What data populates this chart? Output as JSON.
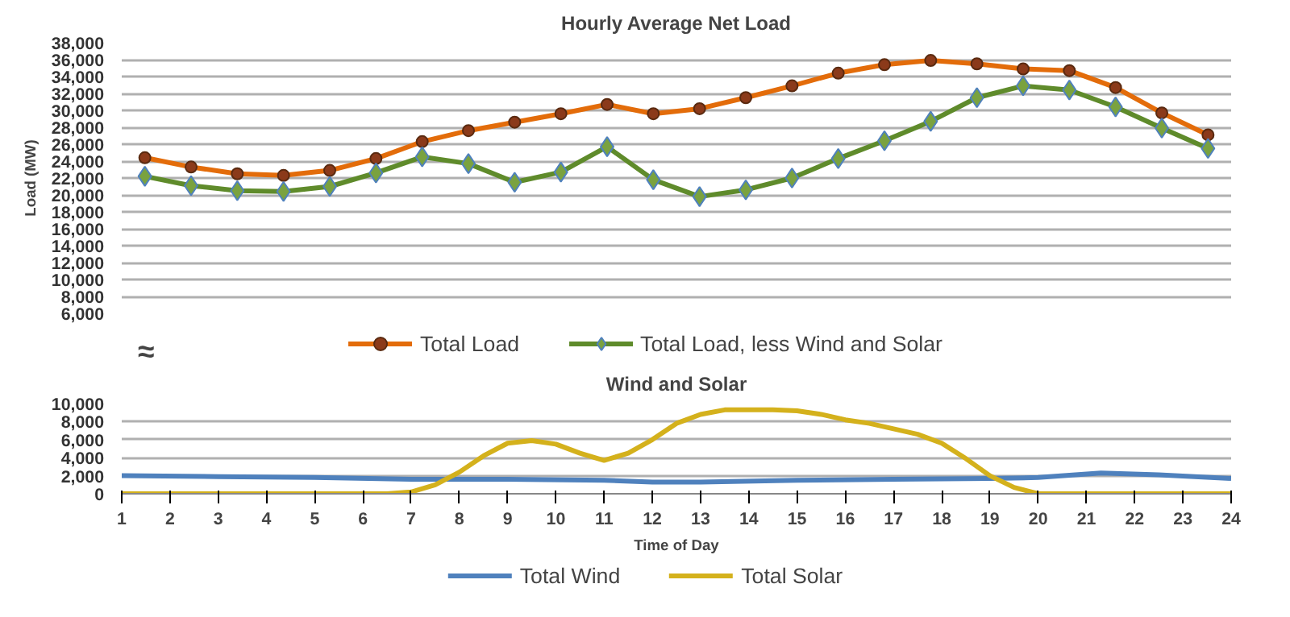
{
  "chart_data": [
    {
      "type": "line",
      "title": "Hourly Average Net Load",
      "ylabel": "Load (MW)",
      "categories": [
        null,
        null,
        null,
        null,
        null,
        null,
        null,
        null,
        null,
        null,
        null,
        null,
        null,
        null,
        null,
        null,
        null,
        null,
        null,
        null,
        null,
        null,
        null,
        null
      ],
      "series": [
        {
          "name": "Total Load",
          "color": "#e36c0a",
          "marker": "circle",
          "values": [
            24400,
            23300,
            22500,
            22300,
            22900,
            24300,
            26300,
            27600,
            28600,
            29600,
            30700,
            29600,
            30200,
            31500,
            32900,
            34400,
            35400,
            35900,
            35500,
            34900,
            34700,
            32700,
            29700,
            27100
          ]
        },
        {
          "name": "Total Load, less Wind and Solar",
          "color": "#5f8b2b",
          "marker": "diamond",
          "values": [
            22200,
            21100,
            20500,
            20400,
            21000,
            22600,
            24500,
            23700,
            21500,
            22700,
            25700,
            21800,
            19800,
            20600,
            22000,
            24300,
            26400,
            28700,
            31500,
            32900,
            32400,
            30400,
            27900,
            25500
          ]
        }
      ],
      "ylim": [
        6000,
        38000
      ],
      "yticks": [
        {
          "value": 6000,
          "label": "6,000"
        },
        {
          "value": 8000,
          "label": "8,000"
        },
        {
          "value": 10000,
          "label": "10,000"
        },
        {
          "value": 12000,
          "label": "12,000"
        },
        {
          "value": 14000,
          "label": "14,000"
        },
        {
          "value": 16000,
          "label": "16,000"
        },
        {
          "value": 18000,
          "label": "18,000"
        },
        {
          "value": 20000,
          "label": "20,000"
        },
        {
          "value": 22000,
          "label": "22,000"
        },
        {
          "value": 24000,
          "label": "24,000"
        },
        {
          "value": 26000,
          "label": "26,000"
        },
        {
          "value": 28000,
          "label": "28,000"
        },
        {
          "value": 30000,
          "label": "30,000"
        },
        {
          "value": 32000,
          "label": "32,000"
        },
        {
          "value": 34000,
          "label": "34,000"
        },
        {
          "value": 36000,
          "label": "36,000"
        },
        {
          "value": 38000,
          "label": "38,000"
        }
      ],
      "grid": "y",
      "legend": "bottom",
      "tick_labels": "y",
      "annotations": [
        "≈"
      ]
    },
    {
      "type": "line",
      "title": "Wind and Solar",
      "xlabel": "Time of Day",
      "series": [
        {
          "name": "Total Wind",
          "color": "#4f81bd",
          "x": [
            1,
            3,
            5,
            7,
            9,
            11,
            12,
            13,
            15,
            17,
            19,
            20,
            21.3,
            22.5,
            24
          ],
          "values": [
            2000,
            1900,
            1800,
            1600,
            1600,
            1500,
            1300,
            1300,
            1500,
            1600,
            1700,
            1800,
            2300,
            2100,
            1700
          ]
        },
        {
          "name": "Total Solar",
          "color": "#d4b11c",
          "x": [
            1,
            6.5,
            7,
            7.5,
            8,
            8.5,
            9,
            9.5,
            10,
            10.5,
            11,
            11.5,
            12,
            12.5,
            13,
            13.5,
            14,
            14.5,
            15,
            15.5,
            16,
            16.5,
            17,
            17.5,
            18,
            18.5,
            19,
            19.5,
            20,
            24
          ],
          "values": [
            0,
            0,
            200,
            1000,
            2400,
            4200,
            5600,
            5900,
            5500,
            4500,
            3700,
            4500,
            6000,
            7800,
            8800,
            9300,
            9300,
            9300,
            9200,
            8800,
            8200,
            7800,
            7200,
            6600,
            5600,
            3900,
            2000,
            700,
            0,
            0
          ]
        }
      ],
      "xlim": [
        1,
        24
      ],
      "xticks": [
        1,
        2,
        3,
        4,
        5,
        6,
        7,
        8,
        9,
        10,
        11,
        12,
        13,
        14,
        15,
        16,
        17,
        18,
        19,
        20,
        21,
        22,
        23,
        24
      ],
      "ylim": [
        0,
        10000
      ],
      "yticks": [
        {
          "value": 0,
          "label": "0"
        },
        {
          "value": 2000,
          "label": "2,000"
        },
        {
          "value": 4000,
          "label": "4,000"
        },
        {
          "value": 6000,
          "label": "6,000"
        },
        {
          "value": 8000,
          "label": "8,000"
        },
        {
          "value": 10000,
          "label": "10,000"
        }
      ],
      "grid": "y",
      "legend": "bottom",
      "marker": "none"
    }
  ]
}
